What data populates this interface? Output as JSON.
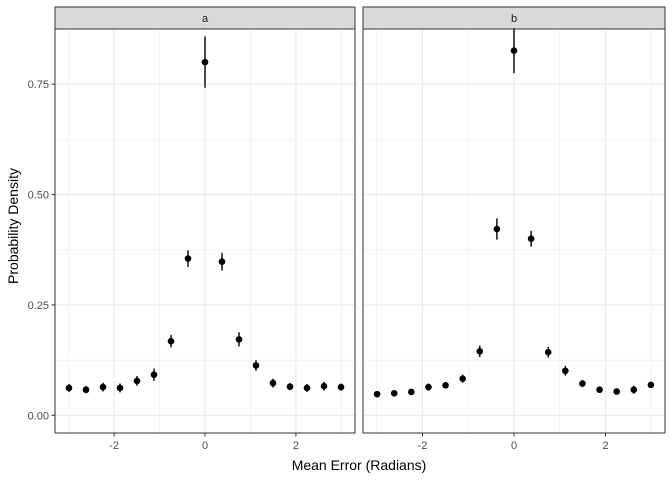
{
  "chart_data": {
    "type": "scatter",
    "xlabel": "Mean Error (Radians)",
    "ylabel": "Probability Density",
    "xlim": [
      -3.3,
      3.3
    ],
    "ylim": [
      -0.04,
      0.875
    ],
    "x_major_ticks": [
      -2,
      0,
      2
    ],
    "x_tick_labels": [
      "-2",
      "0",
      "2"
    ],
    "x_minor_ticks": [
      -3,
      -1,
      1,
      3
    ],
    "y_major_ticks": [
      0,
      0.25,
      0.5,
      0.75
    ],
    "y_tick_labels": [
      "0.00",
      "0.25",
      "0.50",
      "0.75"
    ],
    "y_minor_ticks": [
      0.125,
      0.375,
      0.625
    ],
    "grid": true,
    "error_bars": true,
    "colors": {
      "points": "#000000",
      "strip": "#d9d9d9",
      "grid": "#ebebeb",
      "border": "#333333"
    },
    "panels": [
      {
        "label": "a",
        "points": [
          {
            "x": -2.992,
            "y": 0.062,
            "lo": 0.053,
            "hi": 0.071
          },
          {
            "x": -2.618,
            "y": 0.058,
            "lo": 0.05,
            "hi": 0.066
          },
          {
            "x": -2.244,
            "y": 0.064,
            "lo": 0.054,
            "hi": 0.074
          },
          {
            "x": -1.87,
            "y": 0.062,
            "lo": 0.052,
            "hi": 0.072
          },
          {
            "x": -1.496,
            "y": 0.078,
            "lo": 0.067,
            "hi": 0.089
          },
          {
            "x": -1.122,
            "y": 0.092,
            "lo": 0.078,
            "hi": 0.106
          },
          {
            "x": -0.748,
            "y": 0.168,
            "lo": 0.154,
            "hi": 0.182
          },
          {
            "x": -0.374,
            "y": 0.355,
            "lo": 0.336,
            "hi": 0.374
          },
          {
            "x": 0.0,
            "y": 0.8,
            "lo": 0.742,
            "hi": 0.858
          },
          {
            "x": 0.374,
            "y": 0.348,
            "lo": 0.328,
            "hi": 0.368
          },
          {
            "x": 0.748,
            "y": 0.172,
            "lo": 0.156,
            "hi": 0.188
          },
          {
            "x": 1.122,
            "y": 0.113,
            "lo": 0.101,
            "hi": 0.125
          },
          {
            "x": 1.496,
            "y": 0.073,
            "lo": 0.063,
            "hi": 0.083
          },
          {
            "x": 1.87,
            "y": 0.065,
            "lo": 0.057,
            "hi": 0.073
          },
          {
            "x": 2.244,
            "y": 0.062,
            "lo": 0.053,
            "hi": 0.071
          },
          {
            "x": 2.618,
            "y": 0.066,
            "lo": 0.056,
            "hi": 0.076
          },
          {
            "x": 2.992,
            "y": 0.064,
            "lo": 0.056,
            "hi": 0.072
          }
        ]
      },
      {
        "label": "b",
        "points": [
          {
            "x": -2.992,
            "y": 0.048,
            "lo": 0.041,
            "hi": 0.055
          },
          {
            "x": -2.618,
            "y": 0.05,
            "lo": 0.044,
            "hi": 0.056
          },
          {
            "x": -2.244,
            "y": 0.053,
            "lo": 0.047,
            "hi": 0.059
          },
          {
            "x": -1.87,
            "y": 0.064,
            "lo": 0.056,
            "hi": 0.072
          },
          {
            "x": -1.496,
            "y": 0.068,
            "lo": 0.061,
            "hi": 0.075
          },
          {
            "x": -1.122,
            "y": 0.083,
            "lo": 0.074,
            "hi": 0.092
          },
          {
            "x": -0.748,
            "y": 0.145,
            "lo": 0.132,
            "hi": 0.158
          },
          {
            "x": -0.374,
            "y": 0.422,
            "lo": 0.398,
            "hi": 0.446
          },
          {
            "x": 0.0,
            "y": 0.826,
            "lo": 0.775,
            "hi": 0.877
          },
          {
            "x": 0.374,
            "y": 0.4,
            "lo": 0.382,
            "hi": 0.418
          },
          {
            "x": 0.748,
            "y": 0.143,
            "lo": 0.131,
            "hi": 0.155
          },
          {
            "x": 1.122,
            "y": 0.101,
            "lo": 0.09,
            "hi": 0.112
          },
          {
            "x": 1.496,
            "y": 0.072,
            "lo": 0.064,
            "hi": 0.08
          },
          {
            "x": 1.87,
            "y": 0.058,
            "lo": 0.051,
            "hi": 0.065
          },
          {
            "x": 2.244,
            "y": 0.054,
            "lo": 0.048,
            "hi": 0.06
          },
          {
            "x": 2.618,
            "y": 0.058,
            "lo": 0.049,
            "hi": 0.067
          },
          {
            "x": 2.992,
            "y": 0.069,
            "lo": 0.063,
            "hi": 0.075
          }
        ]
      }
    ]
  }
}
